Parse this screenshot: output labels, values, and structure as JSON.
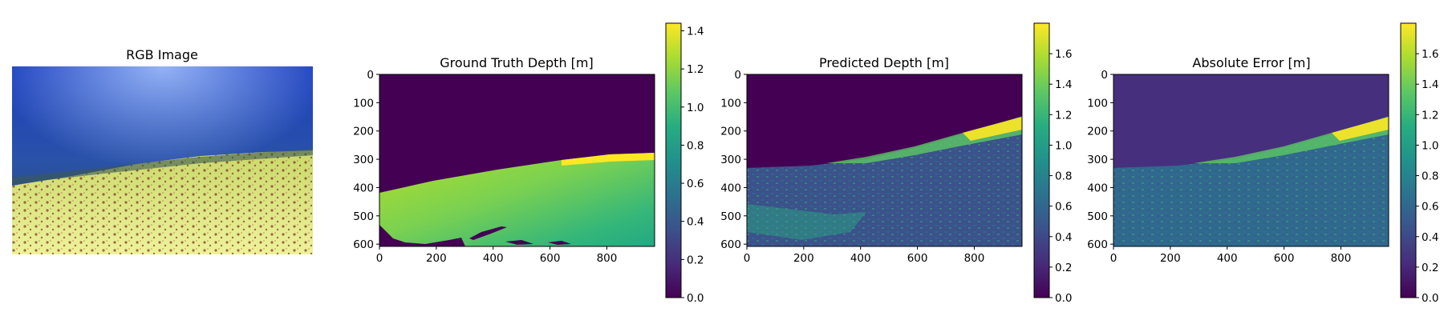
{
  "chart_data": [
    {
      "type": "image",
      "title": "RGB Image",
      "axes": "off"
    },
    {
      "type": "heatmap",
      "title": "Ground Truth Depth [m]",
      "xticks": [
        0,
        200,
        400,
        600,
        800
      ],
      "yticks": [
        0,
        100,
        200,
        300,
        400,
        500,
        600
      ],
      "xlim": [
        0,
        968
      ],
      "ylim": [
        608,
        0
      ],
      "colormap": "viridis",
      "colorbar": {
        "min": 0.0,
        "max": 1.44,
        "ticks": [
          0.0,
          0.2,
          0.4,
          0.6,
          0.8,
          1.0,
          1.2,
          1.4
        ]
      }
    },
    {
      "type": "heatmap",
      "title": "Predicted Depth [m]",
      "xticks": [
        0,
        200,
        400,
        600,
        800
      ],
      "yticks": [
        0,
        100,
        200,
        300,
        400,
        500,
        600
      ],
      "xlim": [
        0,
        968
      ],
      "ylim": [
        608,
        0
      ],
      "colormap": "viridis",
      "colorbar": {
        "min": 0.0,
        "max": 1.8,
        "ticks": [
          0.0,
          0.2,
          0.4,
          0.6,
          0.8,
          1.0,
          1.2,
          1.4,
          1.6
        ]
      }
    },
    {
      "type": "heatmap",
      "title": "Absolute Error [m]",
      "xticks": [
        0,
        200,
        400,
        600,
        800
      ],
      "yticks": [
        0,
        100,
        200,
        300,
        400,
        500,
        600
      ],
      "xlim": [
        0,
        968
      ],
      "ylim": [
        608,
        0
      ],
      "colormap": "viridis",
      "colorbar": {
        "min": 0.0,
        "max": 1.8,
        "ticks": [
          0.0,
          0.2,
          0.4,
          0.6,
          0.8,
          1.0,
          1.2,
          1.4,
          1.6
        ]
      }
    }
  ]
}
